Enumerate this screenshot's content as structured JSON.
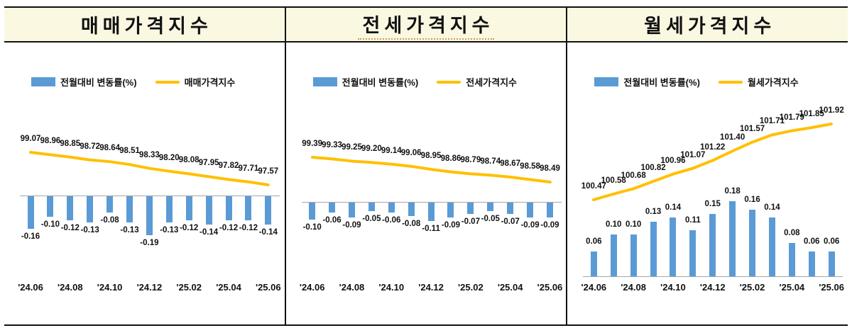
{
  "colors": {
    "bar_blue": "#5B9BD5",
    "line_yellow": "#FFC000",
    "header_bg": "#FBF8E2",
    "axis_gray": "#A6A6A6",
    "border_black": "#111111"
  },
  "panels": [
    {
      "title": "매매가격지수",
      "legend": {
        "bar": "전월대비 변동률(%)",
        "line": "매매가격지수"
      }
    },
    {
      "title": "전세가격지수",
      "legend": {
        "bar": "전월대비 변동률(%)",
        "line": "전세가격지수"
      }
    },
    {
      "title": "월세가격지수",
      "legend": {
        "bar": "전월대비 변동률(%)",
        "line": "월세가격지수"
      }
    }
  ],
  "chart_data": [
    {
      "type": "bar+line",
      "title": "매매가격지수",
      "n_points": 13,
      "x_tick_labels": [
        "'24.06",
        "'24.08",
        "'24.10",
        "'24.12",
        "'25.02",
        "'25.04",
        "'25.06"
      ],
      "x_tick_indices": [
        0,
        2,
        4,
        6,
        8,
        10,
        12
      ],
      "series": [
        {
          "name": "전월대비 변동률(%)",
          "type": "bar",
          "color": "#5B9BD5",
          "values": [
            -0.16,
            -0.1,
            -0.12,
            -0.13,
            -0.08,
            -0.13,
            -0.19,
            -0.13,
            -0.12,
            -0.14,
            -0.12,
            -0.12,
            -0.14
          ]
        },
        {
          "name": "매매가격지수",
          "type": "line",
          "color": "#FFC000",
          "values": [
            99.07,
            98.96,
            98.85,
            98.72,
            98.64,
            98.51,
            98.33,
            98.2,
            98.08,
            97.95,
            97.82,
            97.71,
            97.57
          ]
        }
      ],
      "legend_position": "top-left",
      "grid": false
    },
    {
      "type": "bar+line",
      "title": "전세가격지수",
      "n_points": 13,
      "x_tick_labels": [
        "'24.06",
        "'24.08",
        "'24.10",
        "'24.12",
        "'25.02",
        "'25.04",
        "'25.06"
      ],
      "x_tick_indices": [
        0,
        2,
        4,
        6,
        8,
        10,
        12
      ],
      "series": [
        {
          "name": "전월대비 변동률(%)",
          "type": "bar",
          "color": "#5B9BD5",
          "values": [
            -0.1,
            -0.06,
            -0.09,
            -0.05,
            -0.06,
            -0.08,
            -0.11,
            -0.09,
            -0.07,
            -0.05,
            -0.07,
            -0.09,
            -0.09
          ]
        },
        {
          "name": "전세가격지수",
          "type": "line",
          "color": "#FFC000",
          "values": [
            99.39,
            99.33,
            99.25,
            99.2,
            99.14,
            99.06,
            98.95,
            98.86,
            98.79,
            98.74,
            98.67,
            98.58,
            98.49
          ]
        }
      ],
      "legend_position": "top-left",
      "grid": false
    },
    {
      "type": "bar+line",
      "title": "월세가격지수",
      "n_points": 13,
      "x_tick_labels": [
        "'24.06",
        "'24.08",
        "'24.10",
        "'24.12",
        "'25.02",
        "'25.04",
        "'25.06"
      ],
      "x_tick_indices": [
        0,
        2,
        4,
        6,
        8,
        10,
        12
      ],
      "series": [
        {
          "name": "전월대비 변동률(%)",
          "type": "bar",
          "color": "#5B9BD5",
          "values": [
            0.06,
            0.1,
            0.1,
            0.13,
            0.14,
            0.11,
            0.15,
            0.18,
            0.16,
            0.14,
            0.08,
            0.06,
            0.06
          ]
        },
        {
          "name": "월세가격지수",
          "type": "line",
          "color": "#FFC000",
          "values": [
            100.47,
            100.58,
            100.68,
            100.82,
            100.96,
            101.07,
            101.22,
            101.4,
            101.57,
            101.71,
            101.79,
            101.85,
            101.92
          ]
        }
      ],
      "legend_position": "top-left",
      "grid": false
    }
  ]
}
